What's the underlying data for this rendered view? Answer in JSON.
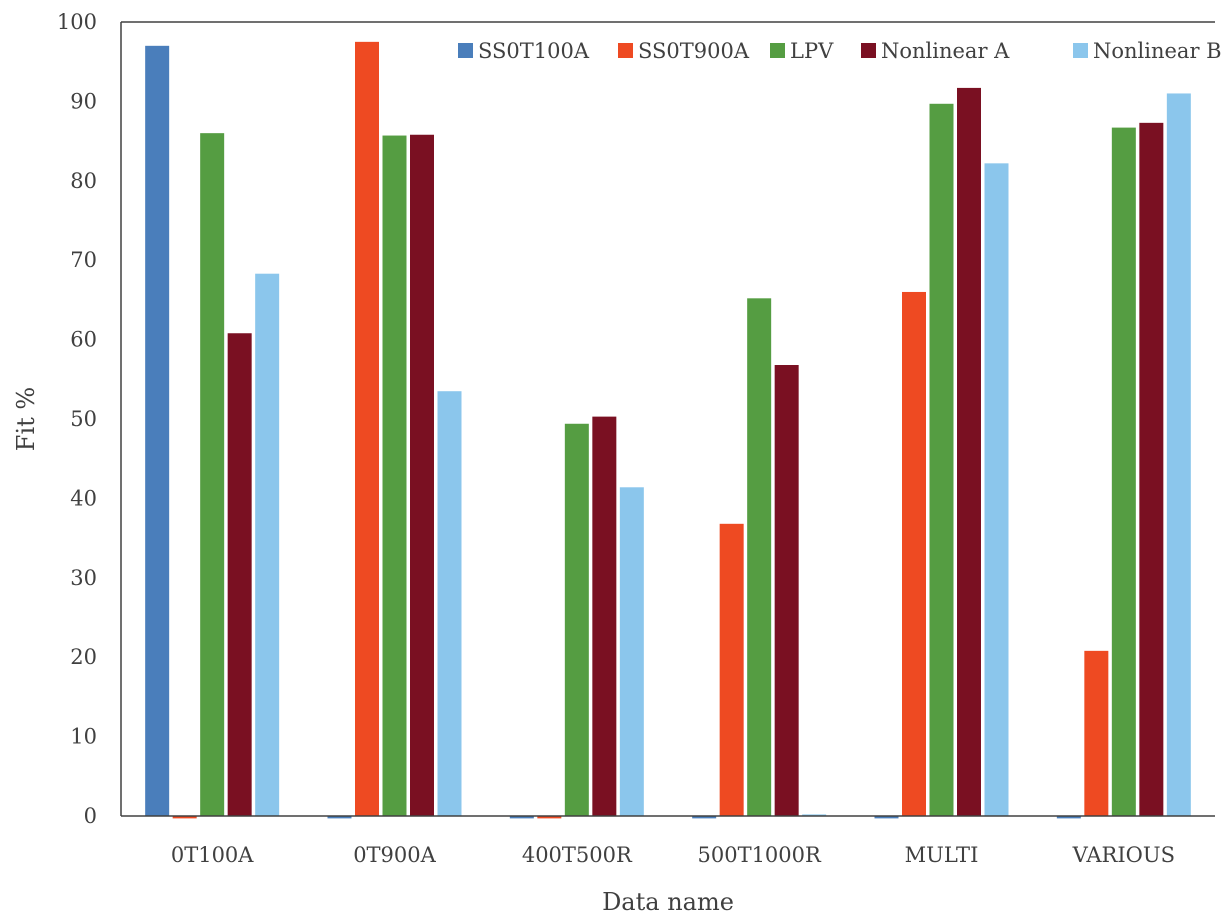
{
  "chart_data": {
    "type": "bar",
    "title": "",
    "xlabel": "Data name",
    "ylabel": "Fit %",
    "ylim": [
      0,
      100
    ],
    "yticks": [
      0,
      10,
      20,
      30,
      40,
      50,
      60,
      70,
      80,
      90,
      100
    ],
    "grid": false,
    "legend_position": "top-right",
    "categories": [
      "0T100A",
      "0T900A",
      "400T500R",
      "500T1000R",
      "MULTI",
      "VARIOUS"
    ],
    "series": [
      {
        "name": "SS0T100A",
        "color": "#4a7ebb",
        "values": [
          97,
          -0.3,
          -0.3,
          -0.3,
          -0.3,
          -0.3
        ]
      },
      {
        "name": "SS0T900A",
        "color": "#ee4a22",
        "values": [
          -0.3,
          97.5,
          -0.3,
          36.8,
          66,
          20.8
        ]
      },
      {
        "name": "LPV",
        "color": "#559d42",
        "values": [
          86,
          85.7,
          49.4,
          65.2,
          89.7,
          86.7
        ]
      },
      {
        "name": "Nonlinear A",
        "color": "#7a1022",
        "values": [
          60.8,
          85.8,
          50.3,
          56.8,
          91.7,
          87.3
        ]
      },
      {
        "name": "Nonlinear B",
        "color": "#8bc6ec",
        "values": [
          68.3,
          53.5,
          41.4,
          0.2,
          82.2,
          91
        ]
      }
    ]
  }
}
